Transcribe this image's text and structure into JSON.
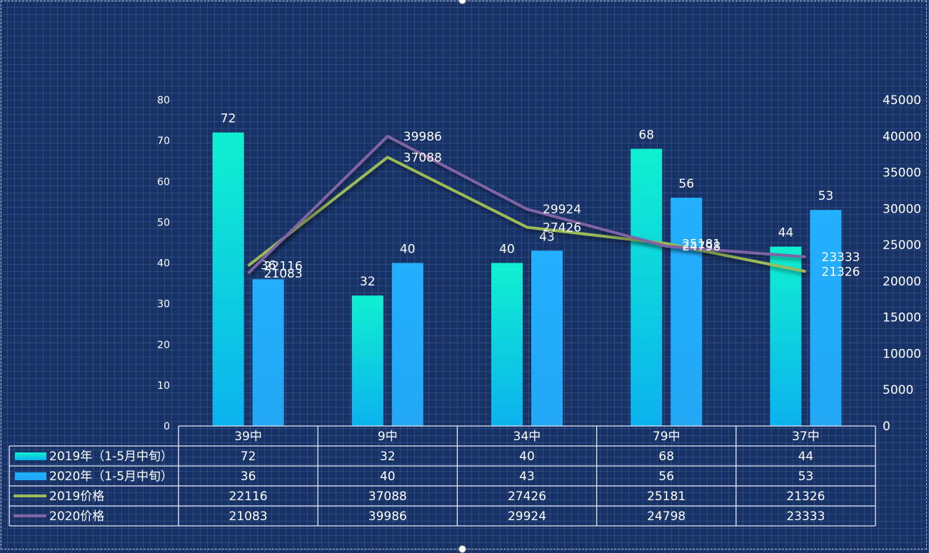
{
  "chart_data": {
    "type": "bar",
    "title": "",
    "categories": [
      "39中",
      "9中",
      "34中",
      "79中",
      "37中"
    ],
    "series": [
      {
        "name": "2019年（1-5月中旬）",
        "type": "bar",
        "axis": "left",
        "color_top": "#10f0d0",
        "color_bottom": "#0bb2ef",
        "values": [
          72,
          32,
          40,
          68,
          44
        ]
      },
      {
        "name": "2020年（1-5月中旬）",
        "type": "bar",
        "axis": "left",
        "color_top": "#22b0ff",
        "color_bottom": "#22a8f5",
        "values": [
          36,
          40,
          43,
          56,
          53
        ]
      },
      {
        "name": "2019价格",
        "type": "line",
        "axis": "right",
        "color": "#9bbb59",
        "values": [
          22116,
          37088,
          27426,
          25181,
          21326
        ]
      },
      {
        "name": "2020价格",
        "type": "line",
        "axis": "right",
        "color": "#8064a2",
        "values": [
          21083,
          39986,
          29924,
          24798,
          23333
        ]
      }
    ],
    "y_left": {
      "min": 0,
      "max": 80,
      "ticks": [
        "0",
        "10",
        "20",
        "30",
        "40",
        "50",
        "60",
        "70",
        "80"
      ]
    },
    "y_right": {
      "min": 0,
      "max": 45000,
      "ticks": [
        "0",
        "5000",
        "10000",
        "15000",
        "20000",
        "25000",
        "30000",
        "35000",
        "40000",
        "45000"
      ]
    },
    "data_labels": true,
    "data_table": true,
    "grid": false,
    "legend": "data-table"
  }
}
